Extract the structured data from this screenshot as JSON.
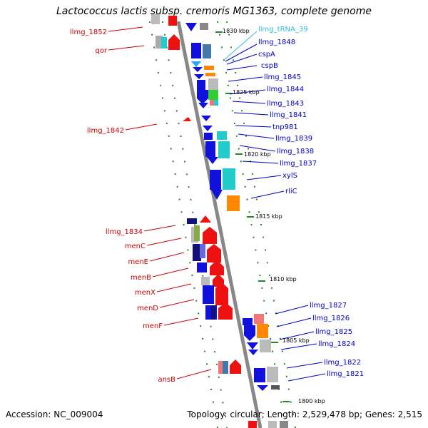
{
  "title": "Lactococcus lactis subsp. cremoris MG1363, complete genome",
  "accession": "Accession: NC_009004",
  "topology": "Topology: circular; Length: 2,529,478 bp; Genes: 2,515",
  "colors": {
    "left_label": "#cc0000",
    "right_label": "#0000cc",
    "trna_label": "#33bbdd",
    "backbone": "#888888",
    "tick": "#228822"
  },
  "scale_labels": [
    "1830 kbp",
    "1825 kbp",
    "1820 kbp",
    "1815 kbp",
    "1810 kbp",
    "1805 kbp",
    "1800 kbp"
  ],
  "left_genes": [
    "llmg_1852",
    "qor",
    "llmg_1842",
    "llmg_1834",
    "menC",
    "menE",
    "menB",
    "menX",
    "menD",
    "menF",
    "ansB"
  ],
  "right_genes": [
    "llmg_tRNA_39",
    "llmg_1848",
    "cspA",
    "cspB",
    "llmg_1845",
    "llmg_1844",
    "llmg_1843",
    "llmg_1841",
    "tnp981",
    "llmg_1839",
    "llmg_1838",
    "llmg_1837",
    "xylS",
    "rliC",
    "llmg_1827",
    "llmg_1826",
    "llmg_1825",
    "llmg_1824",
    "llmg_1822",
    "llmg_1821"
  ]
}
